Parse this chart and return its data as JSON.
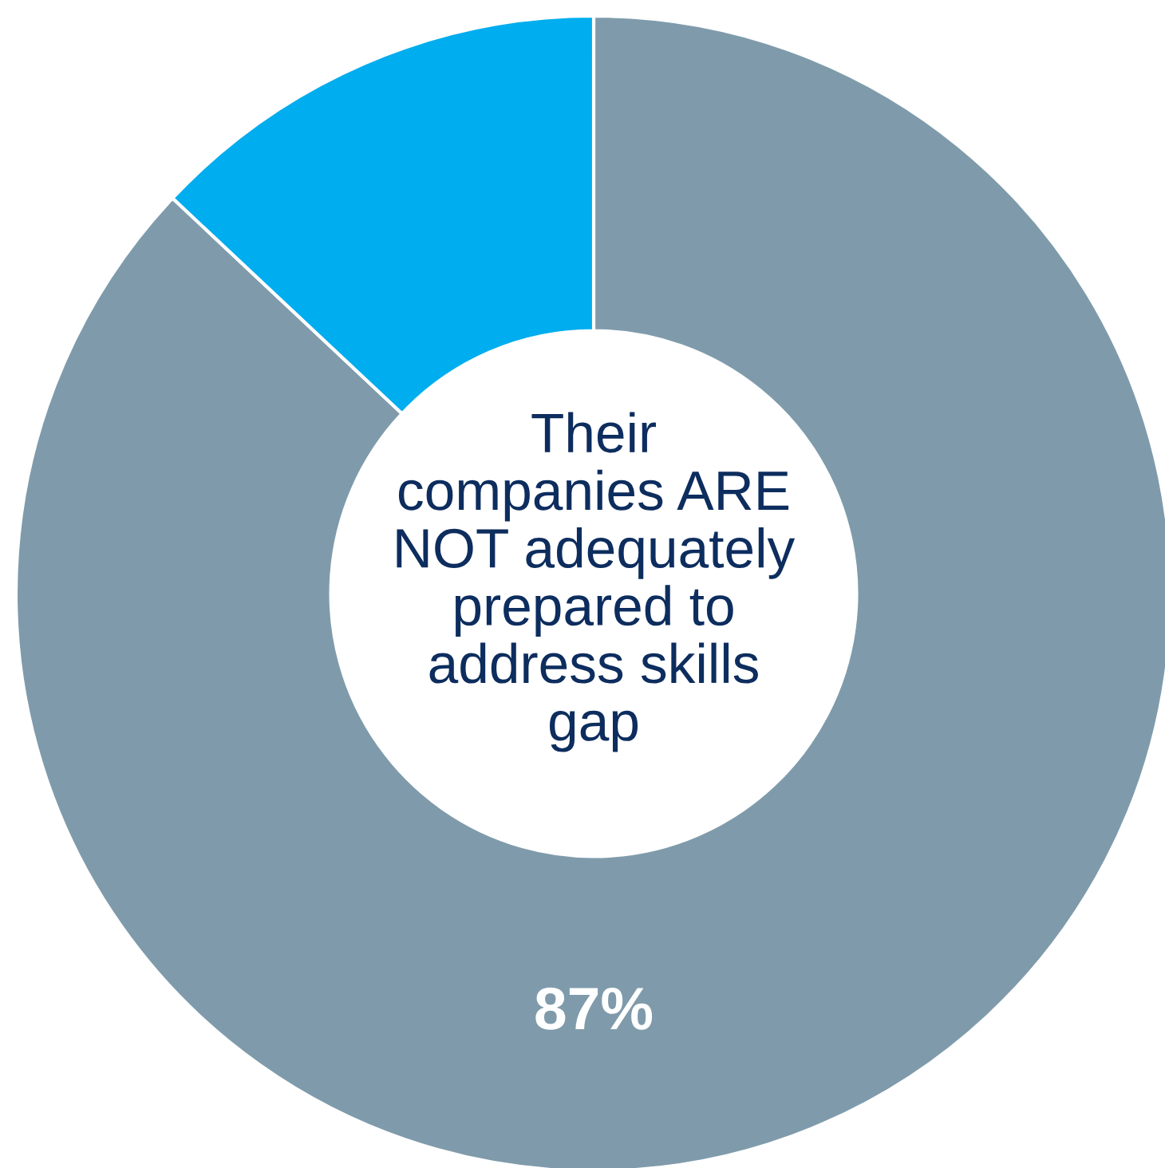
{
  "chart_data": {
    "type": "donut",
    "categories": [
      null,
      null
    ],
    "values": [
      87,
      13
    ],
    "colors": [
      "#7f9bab",
      "#00adee"
    ],
    "value_labels": [
      "87%",
      null
    ],
    "annotations": [
      "Their\ncompanies ARE\nNOT adequately\nprepared to\naddress skills\ngap"
    ],
    "legend": false
  }
}
